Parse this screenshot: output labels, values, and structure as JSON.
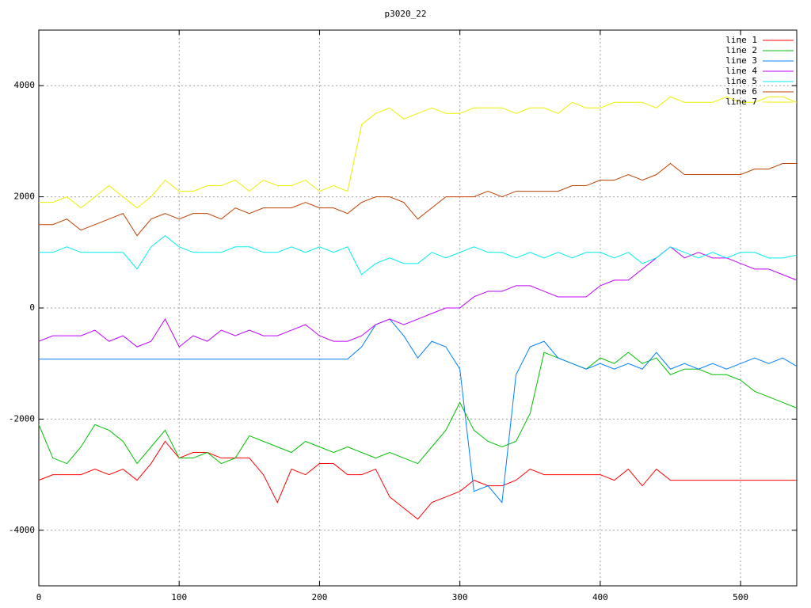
{
  "chart_data": {
    "type": "line",
    "title": "p3020_22",
    "x": [
      0,
      10,
      20,
      30,
      40,
      50,
      60,
      70,
      80,
      90,
      100,
      110,
      120,
      130,
      140,
      150,
      160,
      170,
      180,
      190,
      200,
      210,
      220,
      230,
      240,
      250,
      260,
      270,
      280,
      290,
      300,
      310,
      320,
      330,
      340,
      350,
      360,
      370,
      380,
      390,
      400,
      410,
      420,
      430,
      440,
      450,
      460,
      470,
      480,
      490,
      500,
      510,
      520,
      530,
      540
    ],
    "series": [
      {
        "name": "line 1",
        "color": "#ff0000",
        "values": [
          -3100,
          -3000,
          -3000,
          -3000,
          -2900,
          -3000,
          -2900,
          -3100,
          -2800,
          -2400,
          -2700,
          -2600,
          -2600,
          -2700,
          -2700,
          -2700,
          -3000,
          -3500,
          -2900,
          -3000,
          -2800,
          -2800,
          -3000,
          -3000,
          -2900,
          -3400,
          -3600,
          -3800,
          -3500,
          -3400,
          -3300,
          -3100,
          -3200,
          -3200,
          -3100,
          -2900,
          -3000,
          -3000,
          -3000,
          -3000,
          -3000,
          -3100,
          -2900,
          -3200,
          -2900,
          -3100,
          -3100,
          -3100,
          -3100,
          -3100,
          -3100,
          -3100,
          -3100,
          -3100,
          -3100
        ]
      },
      {
        "name": "line 2",
        "color": "#00c000",
        "values": [
          -2100,
          -2700,
          -2800,
          -2500,
          -2100,
          -2200,
          -2400,
          -2800,
          -2500,
          -2200,
          -2700,
          -2700,
          -2600,
          -2800,
          -2700,
          -2300,
          -2400,
          -2500,
          -2600,
          -2400,
          -2500,
          -2600,
          -2500,
          -2600,
          -2700,
          -2600,
          -2700,
          -2800,
          -2500,
          -2200,
          -1700,
          -2200,
          -2400,
          -2500,
          -2400,
          -1900,
          -800,
          -900,
          -1000,
          -1100,
          -900,
          -1000,
          -800,
          -1000,
          -900,
          -1200,
          -1100,
          -1100,
          -1200,
          -1200,
          -1300,
          -1500,
          -1600,
          -1700,
          -1800
        ]
      },
      {
        "name": "line 3",
        "color": "#0080ff",
        "values": [
          -920,
          -920,
          -920,
          -920,
          -920,
          -920,
          -920,
          -920,
          -920,
          -920,
          -920,
          -920,
          -920,
          -920,
          -920,
          -920,
          -920,
          -920,
          -920,
          -920,
          -920,
          -920,
          -920,
          -700,
          -300,
          -200,
          -500,
          -900,
          -600,
          -700,
          -1100,
          -3300,
          -3200,
          -3500,
          -1200,
          -700,
          -600,
          -900,
          -1000,
          -1100,
          -1000,
          -1100,
          -1000,
          -1100,
          -800,
          -1100,
          -1000,
          -1100,
          -1000,
          -1100,
          -1000,
          -900,
          -1000,
          -900,
          -1050
        ]
      },
      {
        "name": "line 4",
        "color": "#c000ff",
        "values": [
          -600,
          -500,
          -500,
          -500,
          -400,
          -600,
          -500,
          -700,
          -600,
          -200,
          -700,
          -500,
          -600,
          -400,
          -500,
          -400,
          -500,
          -500,
          -400,
          -300,
          -500,
          -600,
          -600,
          -500,
          -300,
          -200,
          -300,
          -200,
          -100,
          0,
          0,
          200,
          300,
          300,
          400,
          400,
          300,
          200,
          200,
          200,
          400,
          500,
          500,
          700,
          900,
          1100,
          900,
          1000,
          900,
          900,
          800,
          700,
          700,
          600,
          500
        ]
      },
      {
        "name": "line 5",
        "color": "#00eeee",
        "values": [
          1000,
          1000,
          1100,
          1000,
          1000,
          1000,
          1000,
          700,
          1100,
          1300,
          1100,
          1000,
          1000,
          1000,
          1100,
          1100,
          1000,
          1000,
          1100,
          1000,
          1100,
          1000,
          1100,
          600,
          800,
          900,
          800,
          800,
          1000,
          900,
          1000,
          1100,
          1000,
          1000,
          900,
          1000,
          900,
          1000,
          900,
          1000,
          1000,
          900,
          1000,
          800,
          900,
          1100,
          1000,
          900,
          1000,
          900,
          1000,
          1000,
          900,
          900,
          950
        ]
      },
      {
        "name": "line 6",
        "color": "#c04000",
        "values": [
          1500,
          1500,
          1600,
          1400,
          1500,
          1600,
          1700,
          1300,
          1600,
          1700,
          1600,
          1700,
          1700,
          1600,
          1800,
          1700,
          1800,
          1800,
          1800,
          1900,
          1800,
          1800,
          1700,
          1900,
          2000,
          2000,
          1900,
          1600,
          1800,
          2000,
          2000,
          2000,
          2100,
          2000,
          2100,
          2100,
          2100,
          2100,
          2200,
          2200,
          2300,
          2300,
          2400,
          2300,
          2400,
          2600,
          2400,
          2400,
          2400,
          2400,
          2400,
          2500,
          2500,
          2600,
          2600
        ]
      },
      {
        "name": "line 7",
        "color": "#eeee00",
        "values": [
          1900,
          1900,
          2000,
          1800,
          2000,
          2200,
          2000,
          1800,
          2000,
          2300,
          2100,
          2100,
          2200,
          2200,
          2300,
          2100,
          2300,
          2200,
          2200,
          2300,
          2100,
          2200,
          2100,
          3300,
          3500,
          3600,
          3400,
          3500,
          3600,
          3500,
          3500,
          3600,
          3600,
          3600,
          3500,
          3600,
          3600,
          3500,
          3700,
          3600,
          3600,
          3700,
          3700,
          3700,
          3600,
          3800,
          3700,
          3700,
          3700,
          3800,
          3700,
          3700,
          3800,
          3800,
          3700
        ]
      }
    ],
    "xlim": [
      0,
      540
    ],
    "xticks": [
      0,
      100,
      200,
      300,
      400,
      500
    ],
    "ylim": [
      -5000,
      5000
    ],
    "yticks": [
      -4000,
      -2000,
      0,
      2000,
      4000
    ],
    "grid": true,
    "legend": "top-right"
  }
}
